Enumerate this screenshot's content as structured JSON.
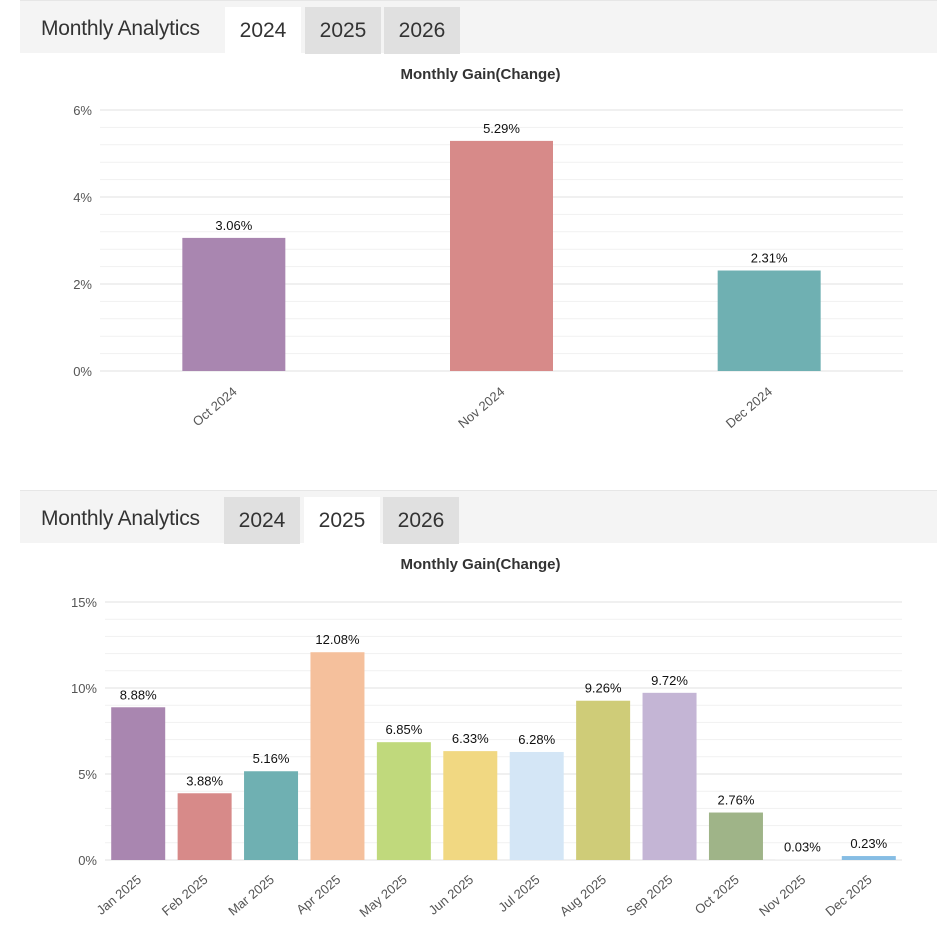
{
  "panels": [
    {
      "header_title": "Monthly Analytics",
      "tabs": [
        {
          "label": "2024",
          "active": true
        },
        {
          "label": "2025",
          "active": false
        },
        {
          "label": "2026",
          "active": false
        }
      ]
    },
    {
      "header_title": "Monthly Analytics",
      "tabs": [
        {
          "label": "2024",
          "active": false
        },
        {
          "label": "2025",
          "active": true
        },
        {
          "label": "2026",
          "active": false
        }
      ]
    }
  ],
  "chart_data": [
    {
      "type": "bar",
      "title": "Monthly Gain(Change)",
      "xlabel": "",
      "ylabel": "",
      "ylim": [
        0,
        6
      ],
      "yticks": [
        0,
        2,
        4,
        6
      ],
      "ytick_labels": [
        "0%",
        "2%",
        "4%",
        "6%"
      ],
      "grid": true,
      "categories": [
        "Oct 2024",
        "Nov 2024",
        "Dec 2024"
      ],
      "values": [
        3.06,
        5.29,
        2.31
      ],
      "data_labels": [
        "3.06%",
        "5.29%",
        "2.31%"
      ],
      "colors": [
        "#a986b0",
        "#d78a89",
        "#6fb0b2"
      ]
    },
    {
      "type": "bar",
      "title": "Monthly Gain(Change)",
      "xlabel": "",
      "ylabel": "",
      "ylim": [
        0,
        15
      ],
      "yticks": [
        0,
        5,
        10,
        15
      ],
      "ytick_labels": [
        "0%",
        "5%",
        "10%",
        "15%"
      ],
      "grid": true,
      "categories": [
        "Jan 2025",
        "Feb 2025",
        "Mar 2025",
        "Apr 2025",
        "May 2025",
        "Jun 2025",
        "Jul 2025",
        "Aug 2025",
        "Sep 2025",
        "Oct 2025",
        "Nov 2025",
        "Dec 2025"
      ],
      "values": [
        8.88,
        3.88,
        5.16,
        12.08,
        6.85,
        6.33,
        6.28,
        9.26,
        9.72,
        2.76,
        0.03,
        0.23
      ],
      "data_labels": [
        "8.88%",
        "3.88%",
        "5.16%",
        "12.08%",
        "6.85%",
        "6.33%",
        "6.28%",
        "9.26%",
        "9.72%",
        "2.76%",
        "0.03%",
        "0.23%"
      ],
      "colors": [
        "#a986b0",
        "#d78a89",
        "#6fb0b2",
        "#f5c09c",
        "#c0d97c",
        "#f1d882",
        "#d4e6f6",
        "#cfcc78",
        "#c4b5d5",
        "#9fb488",
        "#e9e9e9",
        "#86bde4"
      ]
    }
  ]
}
